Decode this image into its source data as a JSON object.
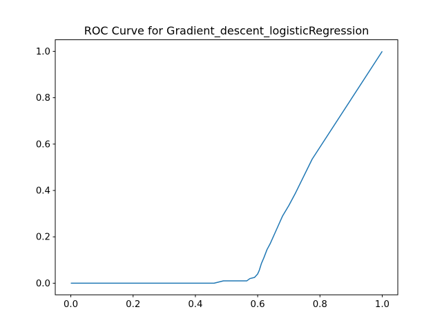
{
  "chart_data": {
    "type": "line",
    "title": "ROC Curve for Gradient_descent_logisticRegression",
    "xlabel": "",
    "ylabel": "",
    "xlim": [
      -0.05,
      1.05
    ],
    "ylim": [
      -0.05,
      1.05
    ],
    "xticks": [
      "0.0",
      "0.2",
      "0.4",
      "0.6",
      "0.8",
      "1.0"
    ],
    "yticks": [
      "0.0",
      "0.2",
      "0.4",
      "0.6",
      "0.8",
      "1.0"
    ],
    "grid": false,
    "legend": "none",
    "series": [
      {
        "color": "#1f77b4",
        "x": [
          0.0,
          0.46,
          0.49,
          0.565,
          0.575,
          0.59,
          0.6,
          0.605,
          0.612,
          0.62,
          0.63,
          0.64,
          0.66,
          0.68,
          0.7,
          0.72,
          0.775,
          1.0
        ],
        "y": [
          0.0,
          0.0,
          0.01,
          0.01,
          0.02,
          0.025,
          0.04,
          0.055,
          0.085,
          0.11,
          0.145,
          0.17,
          0.23,
          0.29,
          0.335,
          0.385,
          0.535,
          1.0
        ]
      }
    ]
  }
}
